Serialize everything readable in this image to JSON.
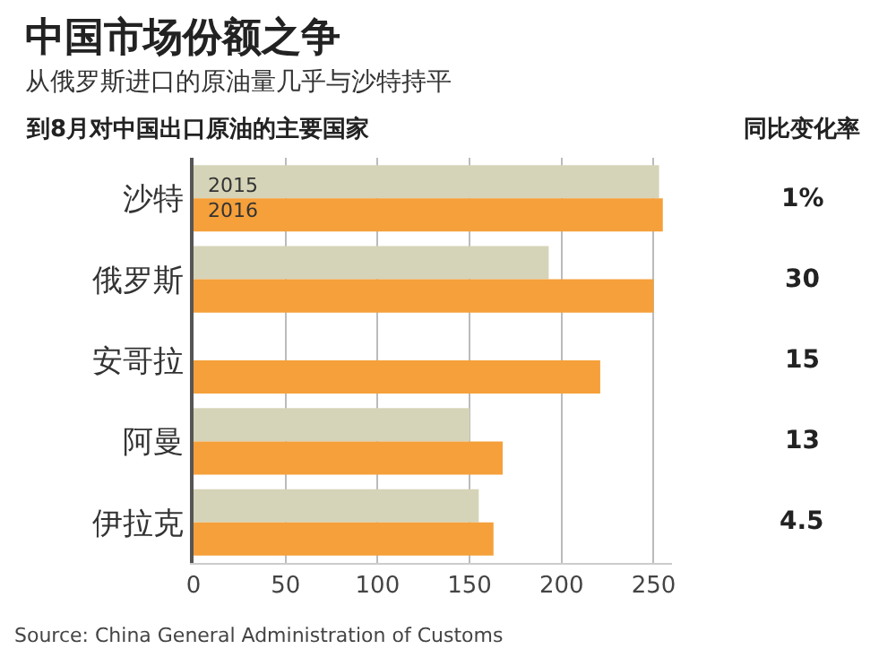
{
  "chart_data": {
    "type": "bar",
    "orientation": "horizontal",
    "title": "中国市场份额之争",
    "subtitle": "从俄罗斯进口的原油量几乎与沙特持平",
    "categories": [
      "沙特",
      "俄罗斯",
      "安哥拉",
      "阿曼",
      "伊拉克"
    ],
    "series": [
      {
        "name": "2015",
        "color": "#d6d4b8",
        "values": [
          253,
          193,
          null,
          150,
          155
        ]
      },
      {
        "name": "2016",
        "color": "#f5a03a",
        "values": [
          255,
          250,
          221,
          168,
          163
        ]
      }
    ],
    "xlim": [
      0,
      260
    ],
    "xticks": [
      0,
      50,
      100,
      150,
      200,
      250
    ],
    "grid": "x",
    "legend": false,
    "annotations": [
      "到8月对中国出口原油的主要国家",
      "同比变化率",
      "1%",
      "30",
      "15",
      "13",
      "4.5",
      "Source: China General Administration of Customs"
    ]
  }
}
